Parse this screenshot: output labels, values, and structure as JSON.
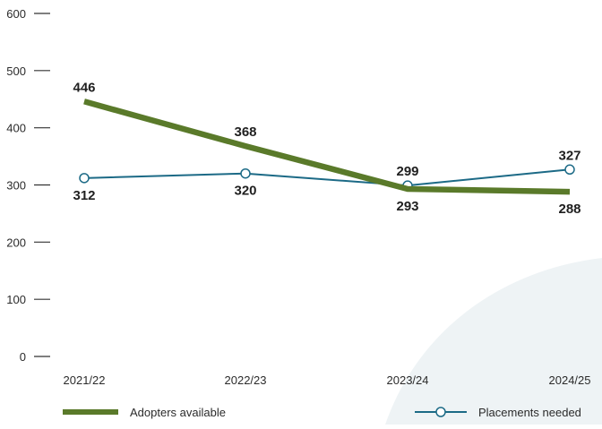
{
  "colors": {
    "background": "#ffffff",
    "decor_shape": "#eef3f5",
    "axis": "#333333",
    "adopters": "#5a7a2a",
    "placements": "#1c6a86"
  },
  "chart_data": {
    "type": "line",
    "title": "",
    "xlabel": "",
    "ylabel": "",
    "categories": [
      "2021/22",
      "2022/23",
      "2023/24",
      "2024/25"
    ],
    "ylim": [
      0,
      600
    ],
    "yticks": [
      0,
      100,
      200,
      300,
      400,
      500,
      600
    ],
    "grid": false,
    "legend_position": "bottom",
    "series": [
      {
        "name": "Adopters available",
        "values": [
          446,
          368,
          293,
          288
        ],
        "color": "#5a7a2a",
        "marker": "none",
        "label_side": [
          "above",
          "above",
          "below",
          "below"
        ]
      },
      {
        "name": "Placements needed",
        "values": [
          312,
          320,
          299,
          327
        ],
        "color": "#1c6a86",
        "marker": "open-circle",
        "label_side": [
          "below",
          "below",
          "above",
          "above"
        ]
      }
    ]
  }
}
